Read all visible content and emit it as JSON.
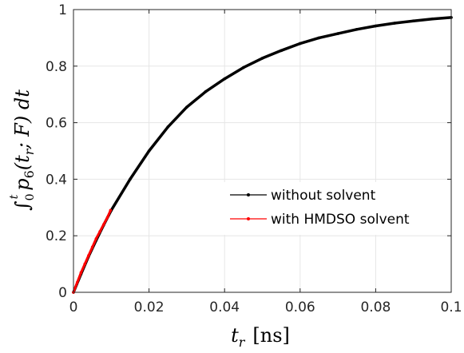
{
  "chart_data": {
    "type": "line",
    "xlabel_main": "t",
    "xlabel_sub": "r",
    "xlabel_unit": "[ns]",
    "ylabel_integral": "∫",
    "ylabel_upper": "t",
    "ylabel_lower": "0",
    "ylabel_func": "p",
    "ylabel_func_sub": "6",
    "ylabel_args": "(t",
    "ylabel_args_sub": "r",
    "ylabel_args_rest": "; F) dt",
    "xlim": [
      0,
      0.1
    ],
    "ylim": [
      0,
      1
    ],
    "xticks": [
      0,
      0.02,
      0.04,
      0.06,
      0.08,
      0.1
    ],
    "xtick_labels": [
      "0",
      "0.02",
      "0.04",
      "0.06",
      "0.08",
      "0.1"
    ],
    "yticks": [
      0,
      0.2,
      0.4,
      0.6,
      0.8,
      1
    ],
    "ytick_labels": [
      "0",
      "0.2",
      "0.4",
      "0.6",
      "0.8",
      "1"
    ],
    "grid": true,
    "legend_position": "center-right",
    "series": [
      {
        "name": "without solvent",
        "color": "#000000",
        "x": [
          0,
          0.002,
          0.004,
          0.006,
          0.008,
          0.01,
          0.015,
          0.02,
          0.025,
          0.03,
          0.035,
          0.04,
          0.045,
          0.05,
          0.055,
          0.06,
          0.065,
          0.07,
          0.075,
          0.08,
          0.085,
          0.09,
          0.095,
          0.1
        ],
        "y": [
          0,
          0.065,
          0.127,
          0.184,
          0.238,
          0.29,
          0.4,
          0.5,
          0.585,
          0.655,
          0.71,
          0.755,
          0.795,
          0.828,
          0.855,
          0.88,
          0.9,
          0.915,
          0.93,
          0.942,
          0.952,
          0.96,
          0.967,
          0.972
        ]
      },
      {
        "name": "with HMDSO solvent",
        "color": "#ff0000",
        "x": [
          0,
          0.001,
          0.002,
          0.003,
          0.004,
          0.005,
          0.006,
          0.007,
          0.008,
          0.009,
          0.0098
        ],
        "y": [
          0,
          0.035,
          0.07,
          0.1,
          0.13,
          0.16,
          0.19,
          0.215,
          0.24,
          0.265,
          0.29
        ]
      }
    ]
  }
}
